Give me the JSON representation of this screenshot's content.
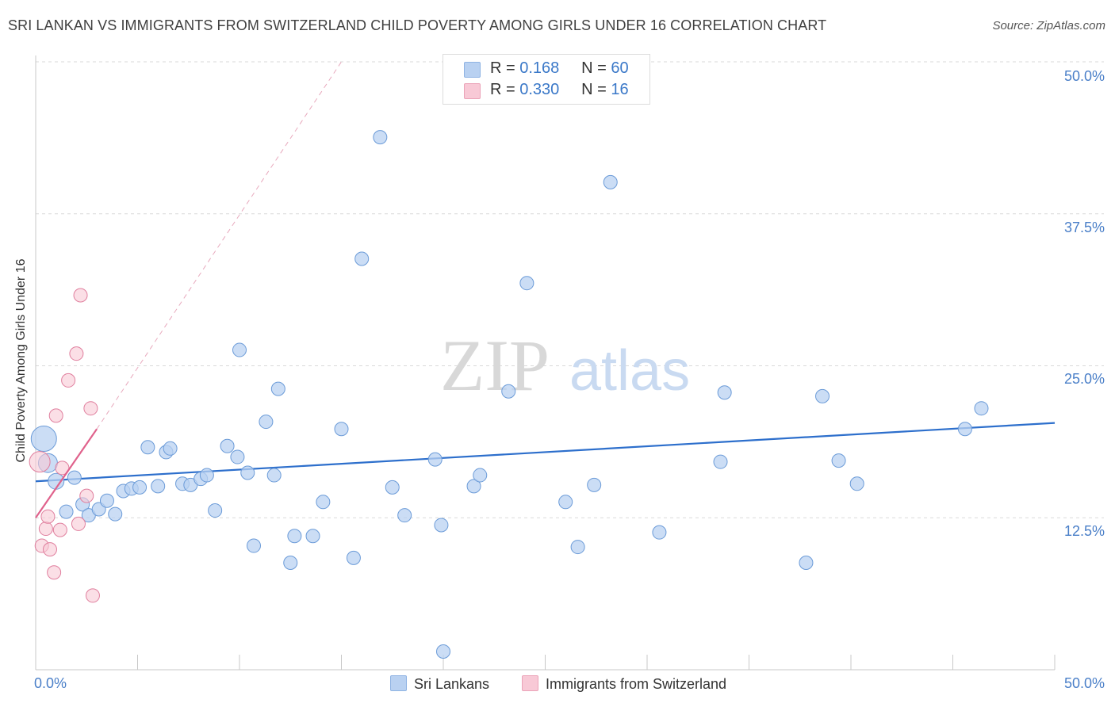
{
  "header": {
    "title": "SRI LANKAN VS IMMIGRANTS FROM SWITZERLAND CHILD POVERTY AMONG GIRLS UNDER 16 CORRELATION CHART",
    "source": "Source: ZipAtlas.com"
  },
  "watermark": {
    "zip": "ZIP",
    "atlas": "atlas"
  },
  "legend_top": {
    "rows": [
      {
        "r_label": "R = ",
        "r_value": "0.168",
        "n_label": "N = ",
        "n_value": "60"
      },
      {
        "r_label": "R = ",
        "r_value": "0.330",
        "n_label": "N = ",
        "n_value": "16"
      }
    ]
  },
  "legend_bottom": {
    "series1": "Sri Lankans",
    "series2": "Immigrants from Switzerland"
  },
  "colors": {
    "blue_fill": "#b9d1f1",
    "blue_stroke": "#6b9bd8",
    "blue_line": "#2d6fcc",
    "pink_fill": "#f8c9d6",
    "pink_stroke": "#e07f9e",
    "pink_line": "#e0628c",
    "grid": "#d9d9d9",
    "tick_text": "#4a7fc8"
  },
  "chart_data": {
    "type": "scatter",
    "title": "SRI LANKAN VS IMMIGRANTS FROM SWITZERLAND CHILD POVERTY AMONG GIRLS UNDER 16 CORRELATION CHART",
    "xlabel": "",
    "ylabel": "Child Poverty Among Girls Under 16",
    "xlim": [
      0,
      50
    ],
    "ylim": [
      0,
      50
    ],
    "x_tick_labels": [
      "0.0%",
      "50.0%"
    ],
    "y_ticks": [
      12.5,
      25.0,
      37.5,
      50.0
    ],
    "y_tick_labels": [
      "12.5%",
      "25.0%",
      "37.5%",
      "50.0%"
    ],
    "grid": true,
    "legend_position": "top-center",
    "series": [
      {
        "name": "Sri Lankans",
        "R": 0.168,
        "N": 60,
        "trend": {
          "x": [
            0,
            50
          ],
          "y": [
            15.5,
            20.3
          ]
        },
        "points": [
          [
            0.4,
            19.0
          ],
          [
            0.6,
            17.0
          ],
          [
            1.0,
            15.5
          ],
          [
            1.5,
            13.0
          ],
          [
            1.9,
            15.8
          ],
          [
            2.3,
            13.6
          ],
          [
            2.6,
            12.7
          ],
          [
            3.1,
            13.2
          ],
          [
            3.5,
            13.9
          ],
          [
            3.9,
            12.8
          ],
          [
            4.3,
            14.7
          ],
          [
            4.7,
            14.9
          ],
          [
            5.1,
            15.0
          ],
          [
            5.5,
            18.3
          ],
          [
            6.0,
            15.1
          ],
          [
            6.4,
            17.9
          ],
          [
            6.6,
            18.2
          ],
          [
            7.2,
            15.3
          ],
          [
            7.6,
            15.2
          ],
          [
            8.1,
            15.7
          ],
          [
            8.4,
            16.0
          ],
          [
            8.8,
            13.1
          ],
          [
            9.4,
            18.4
          ],
          [
            9.9,
            17.5
          ],
          [
            10.0,
            26.3
          ],
          [
            10.4,
            16.2
          ],
          [
            10.7,
            10.2
          ],
          [
            11.3,
            20.4
          ],
          [
            11.7,
            16.0
          ],
          [
            11.9,
            23.1
          ],
          [
            12.5,
            8.8
          ],
          [
            12.7,
            11.0
          ],
          [
            13.6,
            11.0
          ],
          [
            14.1,
            13.8
          ],
          [
            15.0,
            19.8
          ],
          [
            15.6,
            9.2
          ],
          [
            16.0,
            33.8
          ],
          [
            16.9,
            43.8
          ],
          [
            17.5,
            15.0
          ],
          [
            18.1,
            12.7
          ],
          [
            19.6,
            17.3
          ],
          [
            19.9,
            11.9
          ],
          [
            20.0,
            1.5
          ],
          [
            21.5,
            15.1
          ],
          [
            21.8,
            16.0
          ],
          [
            23.2,
            22.9
          ],
          [
            24.1,
            31.8
          ],
          [
            26.0,
            13.8
          ],
          [
            26.6,
            10.1
          ],
          [
            27.4,
            15.2
          ],
          [
            28.2,
            40.1
          ],
          [
            30.6,
            11.3
          ],
          [
            33.6,
            17.1
          ],
          [
            33.8,
            22.8
          ],
          [
            37.8,
            8.8
          ],
          [
            38.6,
            22.5
          ],
          [
            39.4,
            17.2
          ],
          [
            40.3,
            15.3
          ],
          [
            45.6,
            19.8
          ],
          [
            46.4,
            21.5
          ]
        ]
      },
      {
        "name": "Immigrants from Switzerland",
        "R": 0.33,
        "N": 16,
        "trend": {
          "x": [
            0,
            3.0
          ],
          "y": [
            12.5,
            19.8
          ]
        },
        "trend_extended": {
          "x": [
            3.0,
            15.0
          ],
          "y": [
            19.8,
            50.0
          ]
        },
        "points": [
          [
            0.2,
            17.1
          ],
          [
            0.3,
            10.2
          ],
          [
            0.5,
            11.6
          ],
          [
            0.6,
            12.6
          ],
          [
            0.7,
            9.9
          ],
          [
            0.9,
            8.0
          ],
          [
            1.0,
            20.9
          ],
          [
            1.2,
            11.5
          ],
          [
            1.3,
            16.6
          ],
          [
            1.6,
            23.8
          ],
          [
            2.0,
            26.0
          ],
          [
            2.1,
            12.0
          ],
          [
            2.2,
            30.8
          ],
          [
            2.5,
            14.3
          ],
          [
            2.7,
            21.5
          ],
          [
            2.8,
            6.1
          ]
        ]
      }
    ]
  }
}
